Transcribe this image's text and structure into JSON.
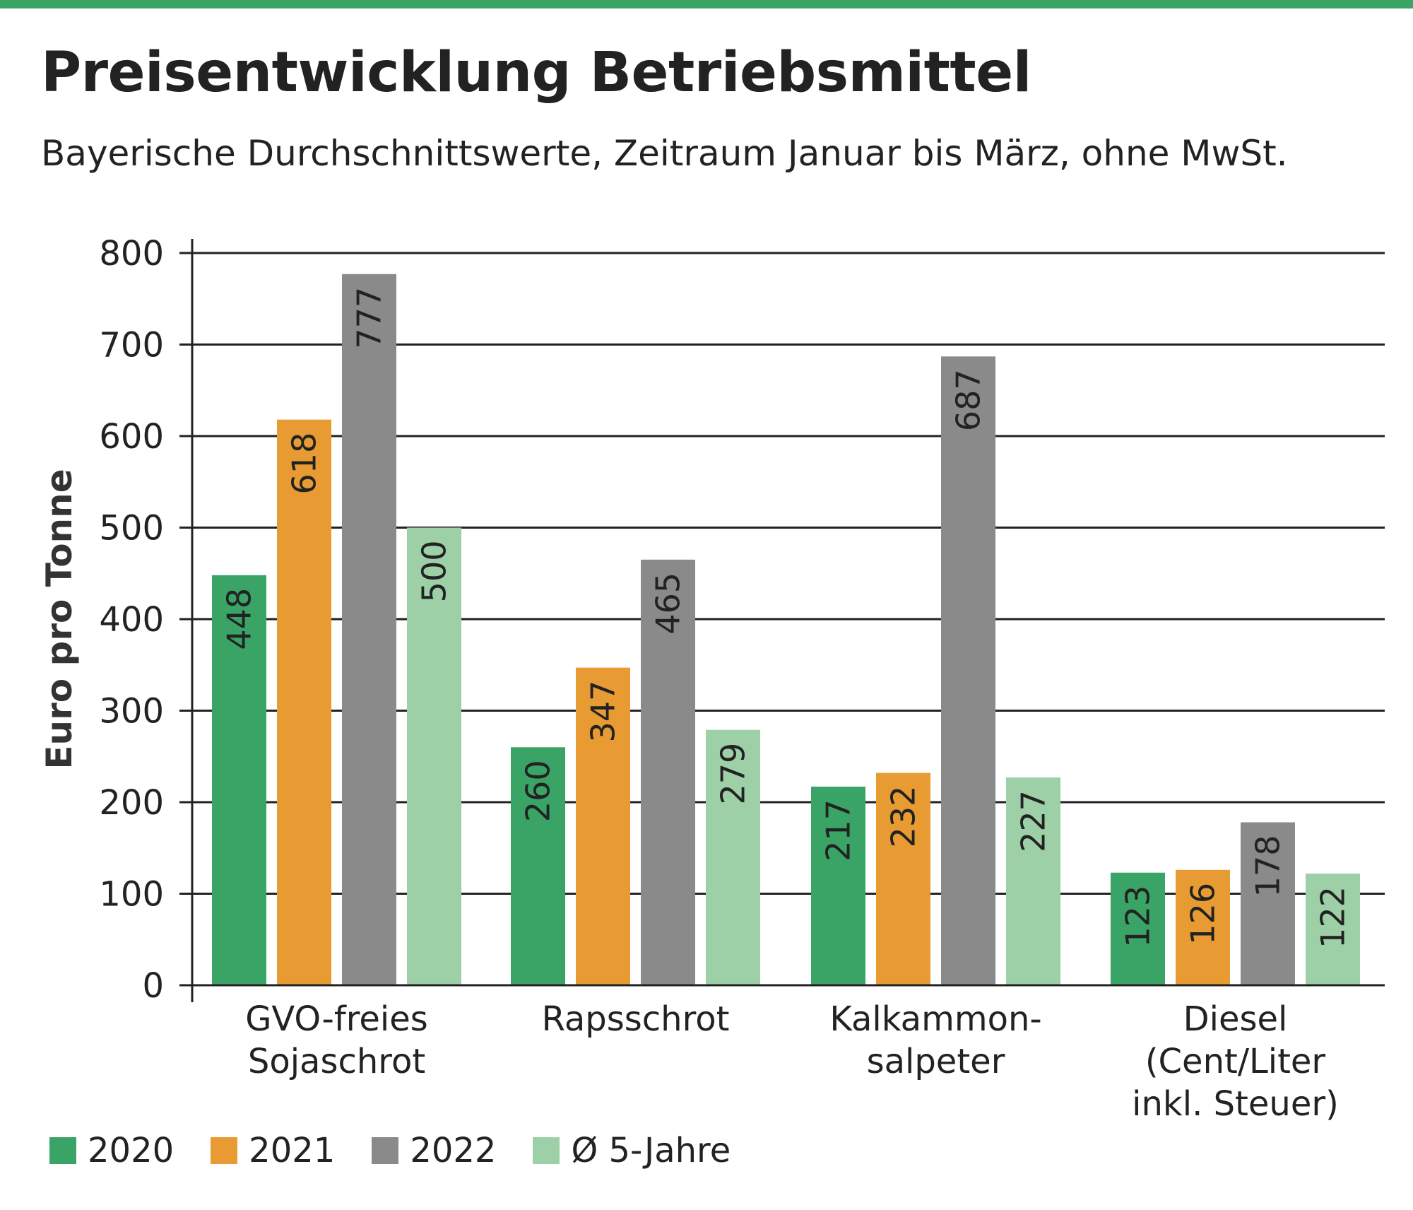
{
  "title": "Preisentwicklung Betriebsmittel",
  "subtitle": "Bayerische Durchschnittswerte, Zeitraum Januar bis März, ohne MwSt.",
  "colors": {
    "accent_bar": "#3aa366",
    "series": [
      "#3aa366",
      "#e89b32",
      "#8a8a8a",
      "#9dd0a6"
    ]
  },
  "chart_data": {
    "type": "bar",
    "ylabel": "Euro pro Tonne",
    "ylim": [
      0,
      800
    ],
    "yticks": [
      "0",
      "100",
      "200",
      "300",
      "400",
      "500",
      "600",
      "700",
      "800"
    ],
    "grid": true,
    "legend_position": "bottom",
    "categories": [
      [
        "GVO-freies",
        "Sojaschrot"
      ],
      [
        "Rapsschrot"
      ],
      [
        "Kalkammon-",
        "salpeter"
      ],
      [
        "Diesel",
        "(Cent/Liter",
        "inkl. Steuer)"
      ]
    ],
    "series": [
      {
        "name": "2020",
        "values": [
          448,
          260,
          217,
          123
        ]
      },
      {
        "name": "2021",
        "values": [
          618,
          347,
          232,
          126
        ]
      },
      {
        "name": "2022",
        "values": [
          777,
          465,
          687,
          178
        ]
      },
      {
        "name": "Ø 5-Jahre",
        "values": [
          500,
          279,
          227,
          122
        ]
      }
    ]
  }
}
